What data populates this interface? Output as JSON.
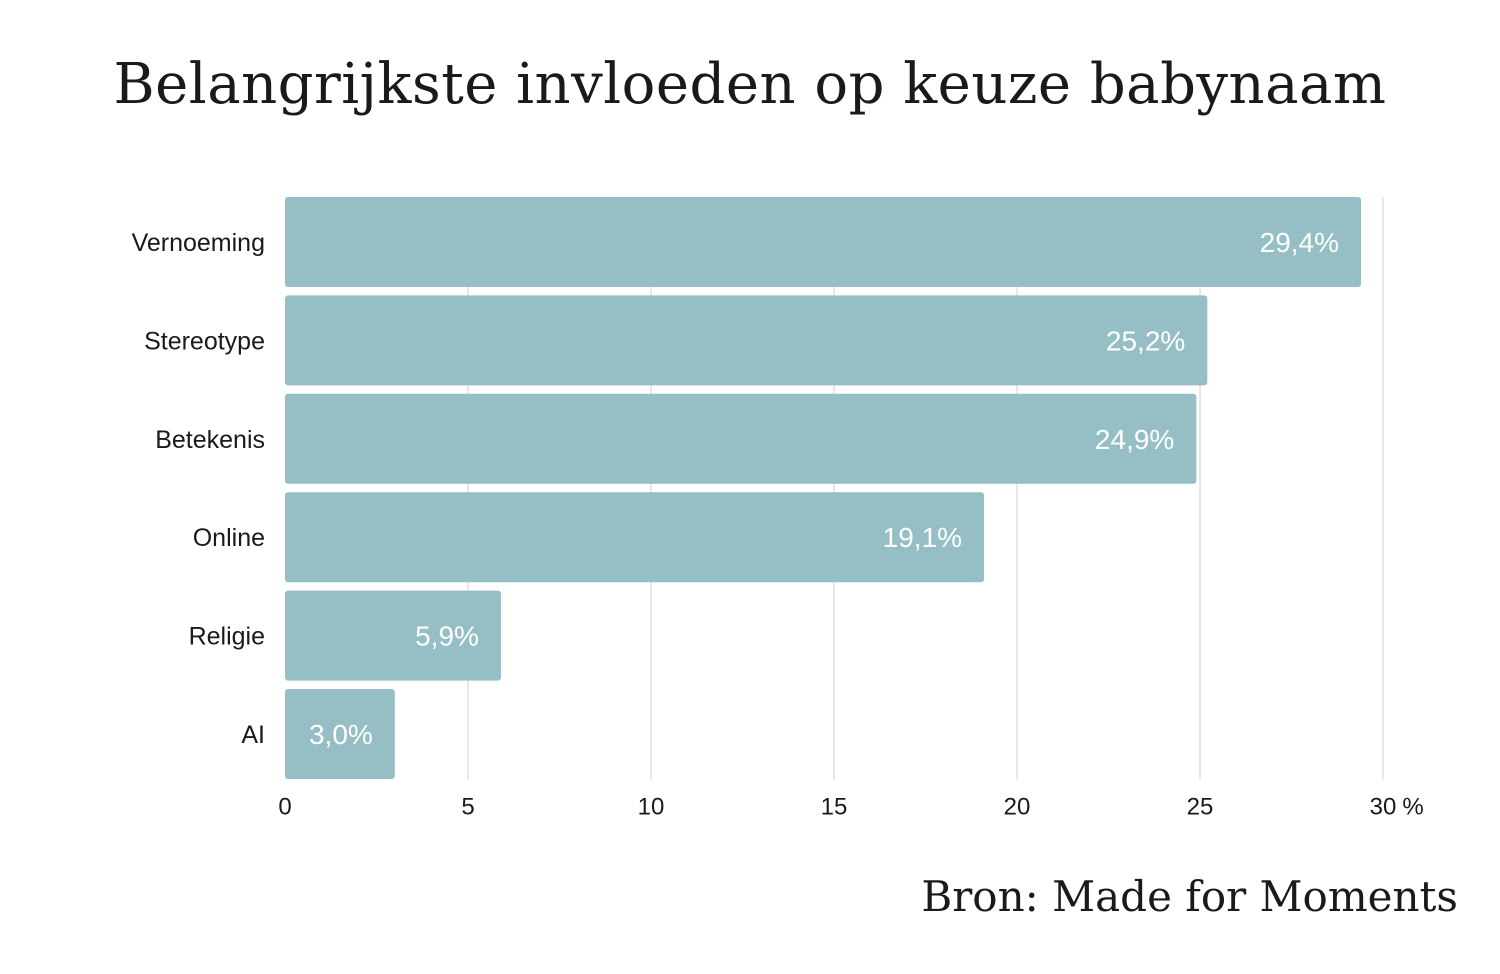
{
  "chart_data": {
    "type": "bar",
    "orientation": "horizontal",
    "title": "Belangrijkste invloeden op keuze babynaam",
    "source": "Bron: Made for Moments",
    "categories": [
      "Vernoeming",
      "Stereotype",
      "Betekenis",
      "Online",
      "Religie",
      "AI"
    ],
    "values": [
      29.4,
      25.2,
      24.9,
      19.1,
      5.9,
      3.0
    ],
    "value_labels": [
      "29,4%",
      "25,2%",
      "24,9%",
      "19,1%",
      "5,9%",
      "3,0%"
    ],
    "xlim": [
      0,
      30
    ],
    "x_ticks": [
      0,
      5,
      10,
      15,
      20,
      25,
      30
    ],
    "x_tick_labels": [
      "0",
      "5",
      "10",
      "15",
      "20",
      "25",
      "30"
    ],
    "x_unit": "%",
    "grid": "vertical",
    "bar_color": "#96bfc5",
    "xlabel": "",
    "ylabel": ""
  }
}
